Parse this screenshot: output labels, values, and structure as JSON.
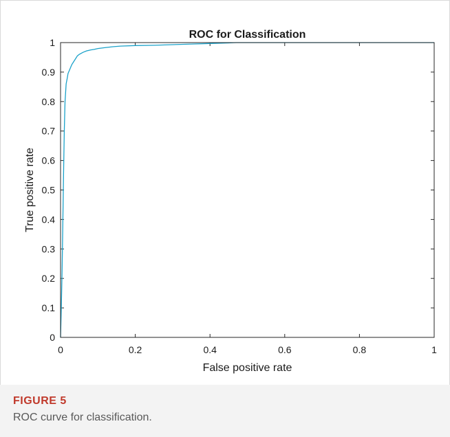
{
  "figure": {
    "label": "FIGURE 5",
    "caption": "ROC curve for classification."
  },
  "chart_data": {
    "type": "line",
    "title": "ROC for Classification",
    "xlabel": "False positive rate",
    "ylabel": "True positive rate",
    "xlim": [
      0,
      1
    ],
    "ylim": [
      0,
      1
    ],
    "xticks": [
      0,
      0.2,
      0.4,
      0.6,
      0.8,
      1
    ],
    "xtick_labels": [
      "0",
      "0.2",
      "0.4",
      "0.6",
      "0.8",
      "1"
    ],
    "yticks": [
      0,
      0.1,
      0.2,
      0.3,
      0.4,
      0.5,
      0.6,
      0.7,
      0.8,
      0.9,
      1
    ],
    "ytick_labels": [
      "0",
      "0.1",
      "0.2",
      "0.3",
      "0.4",
      "0.5",
      "0.6",
      "0.7",
      "0.8",
      "0.9",
      "1"
    ],
    "grid": false,
    "line_color": "#1aa1c9",
    "series": [
      {
        "x": [
          0,
          0.002,
          0.004,
          0.006,
          0.008,
          0.01,
          0.012,
          0.015,
          0.018,
          0.02,
          0.025,
          0.03,
          0.035,
          0.04,
          0.045,
          0.05,
          0.06,
          0.07,
          0.08,
          0.09,
          0.1,
          0.12,
          0.14,
          0.16,
          0.2,
          0.25,
          0.3,
          0.35,
          0.4,
          0.45,
          0.47,
          0.6,
          0.8,
          1
        ],
        "y": [
          0,
          0.1,
          0.22,
          0.38,
          0.55,
          0.7,
          0.8,
          0.86,
          0.88,
          0.895,
          0.91,
          0.925,
          0.935,
          0.945,
          0.955,
          0.96,
          0.967,
          0.972,
          0.975,
          0.977,
          0.98,
          0.983,
          0.986,
          0.988,
          0.99,
          0.991,
          0.993,
          0.995,
          0.997,
          0.999,
          1,
          1,
          1,
          1
        ]
      }
    ]
  }
}
